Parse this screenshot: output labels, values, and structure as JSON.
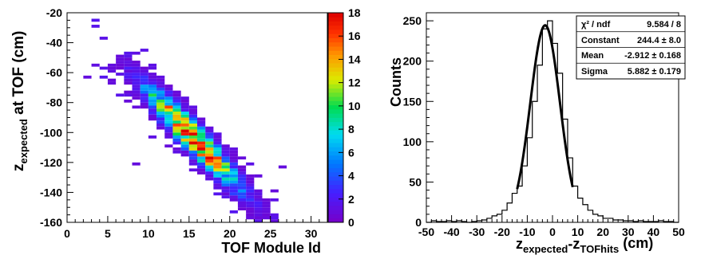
{
  "chart_data": [
    {
      "type": "heatmap",
      "xlabel": "TOF Module Id",
      "ylabel_main": "z",
      "ylabel_sub": "expected",
      "ylabel_rest": " at TOF (cm)",
      "xlim": [
        0,
        32
      ],
      "ylim": [
        -160,
        -20
      ],
      "xticks": [
        0,
        5,
        10,
        15,
        20,
        25,
        30
      ],
      "yticks": [
        -160,
        -140,
        -120,
        -100,
        -80,
        -60,
        -40,
        -20
      ],
      "zlim": [
        0,
        18
      ],
      "zticks": [
        0,
        2,
        4,
        6,
        8,
        10,
        12,
        14,
        16,
        18
      ],
      "bin_width_x": 1,
      "bin_height_y": 2,
      "ridge": {
        "x": [
          4,
          24
        ],
        "y": [
          -40,
          -150
        ],
        "cross_sigma_y": 7,
        "peak_x": 15.5,
        "peak_z": 18
      }
    },
    {
      "type": "histogram",
      "xlabel_main": "z",
      "xlabel_sub1": "expected",
      "xlabel_mid": "-z",
      "xlabel_sub2": "TOFhits",
      "xlabel_unit": " (cm)",
      "ylabel": "Counts",
      "xlim": [
        -50,
        50
      ],
      "ylim": [
        0,
        260
      ],
      "xticks": [
        -50,
        -40,
        -30,
        -20,
        -10,
        0,
        10,
        20,
        30,
        40,
        50
      ],
      "yticks": [
        0,
        50,
        100,
        150,
        200,
        250
      ],
      "bin_width": 2,
      "bins": [
        {
          "x": -50,
          "count": 0
        },
        {
          "x": -48,
          "count": 2
        },
        {
          "x": -46,
          "count": 1
        },
        {
          "x": -44,
          "count": 1
        },
        {
          "x": -42,
          "count": 2
        },
        {
          "x": -40,
          "count": 1
        },
        {
          "x": -38,
          "count": 2
        },
        {
          "x": -36,
          "count": 1
        },
        {
          "x": -34,
          "count": 0
        },
        {
          "x": -32,
          "count": 1
        },
        {
          "x": -30,
          "count": 2
        },
        {
          "x": -28,
          "count": 3
        },
        {
          "x": -26,
          "count": 5
        },
        {
          "x": -24,
          "count": 8
        },
        {
          "x": -22,
          "count": 10
        },
        {
          "x": -20,
          "count": 15
        },
        {
          "x": -18,
          "count": 24
        },
        {
          "x": -16,
          "count": 36
        },
        {
          "x": -14,
          "count": 45
        },
        {
          "x": -12,
          "count": 70
        },
        {
          "x": -10,
          "count": 105
        },
        {
          "x": -8,
          "count": 150
        },
        {
          "x": -6,
          "count": 195
        },
        {
          "x": -4,
          "count": 240
        },
        {
          "x": -2,
          "count": 250
        },
        {
          "x": 0,
          "count": 222
        },
        {
          "x": 2,
          "count": 185
        },
        {
          "x": 4,
          "count": 128
        },
        {
          "x": 6,
          "count": 80
        },
        {
          "x": 8,
          "count": 45
        },
        {
          "x": 10,
          "count": 30
        },
        {
          "x": 12,
          "count": 22
        },
        {
          "x": 14,
          "count": 15
        },
        {
          "x": 16,
          "count": 10
        },
        {
          "x": 18,
          "count": 8
        },
        {
          "x": 20,
          "count": 5
        },
        {
          "x": 22,
          "count": 5
        },
        {
          "x": 24,
          "count": 3
        },
        {
          "x": 26,
          "count": 3
        },
        {
          "x": 28,
          "count": 2
        },
        {
          "x": 30,
          "count": 2
        },
        {
          "x": 32,
          "count": 1
        },
        {
          "x": 34,
          "count": 2
        },
        {
          "x": 36,
          "count": 1
        },
        {
          "x": 38,
          "count": 1
        },
        {
          "x": 40,
          "count": 1
        },
        {
          "x": 42,
          "count": 2
        },
        {
          "x": 44,
          "count": 1
        },
        {
          "x": 46,
          "count": 1
        },
        {
          "x": 48,
          "count": 0
        }
      ],
      "fit": {
        "constant": 244.4,
        "mean": -2.912,
        "sigma": 5.882,
        "range": [
          -14,
          8
        ]
      },
      "stats": [
        {
          "label": "χ² / ndf",
          "value": "9.584 / 8"
        },
        {
          "label": "Constant",
          "value": "244.4 ± 8.0"
        },
        {
          "label": "Mean",
          "value": "-2.912 ± 0.168"
        },
        {
          "label": "Sigma",
          "value": "5.882 ± 0.179"
        }
      ]
    }
  ]
}
